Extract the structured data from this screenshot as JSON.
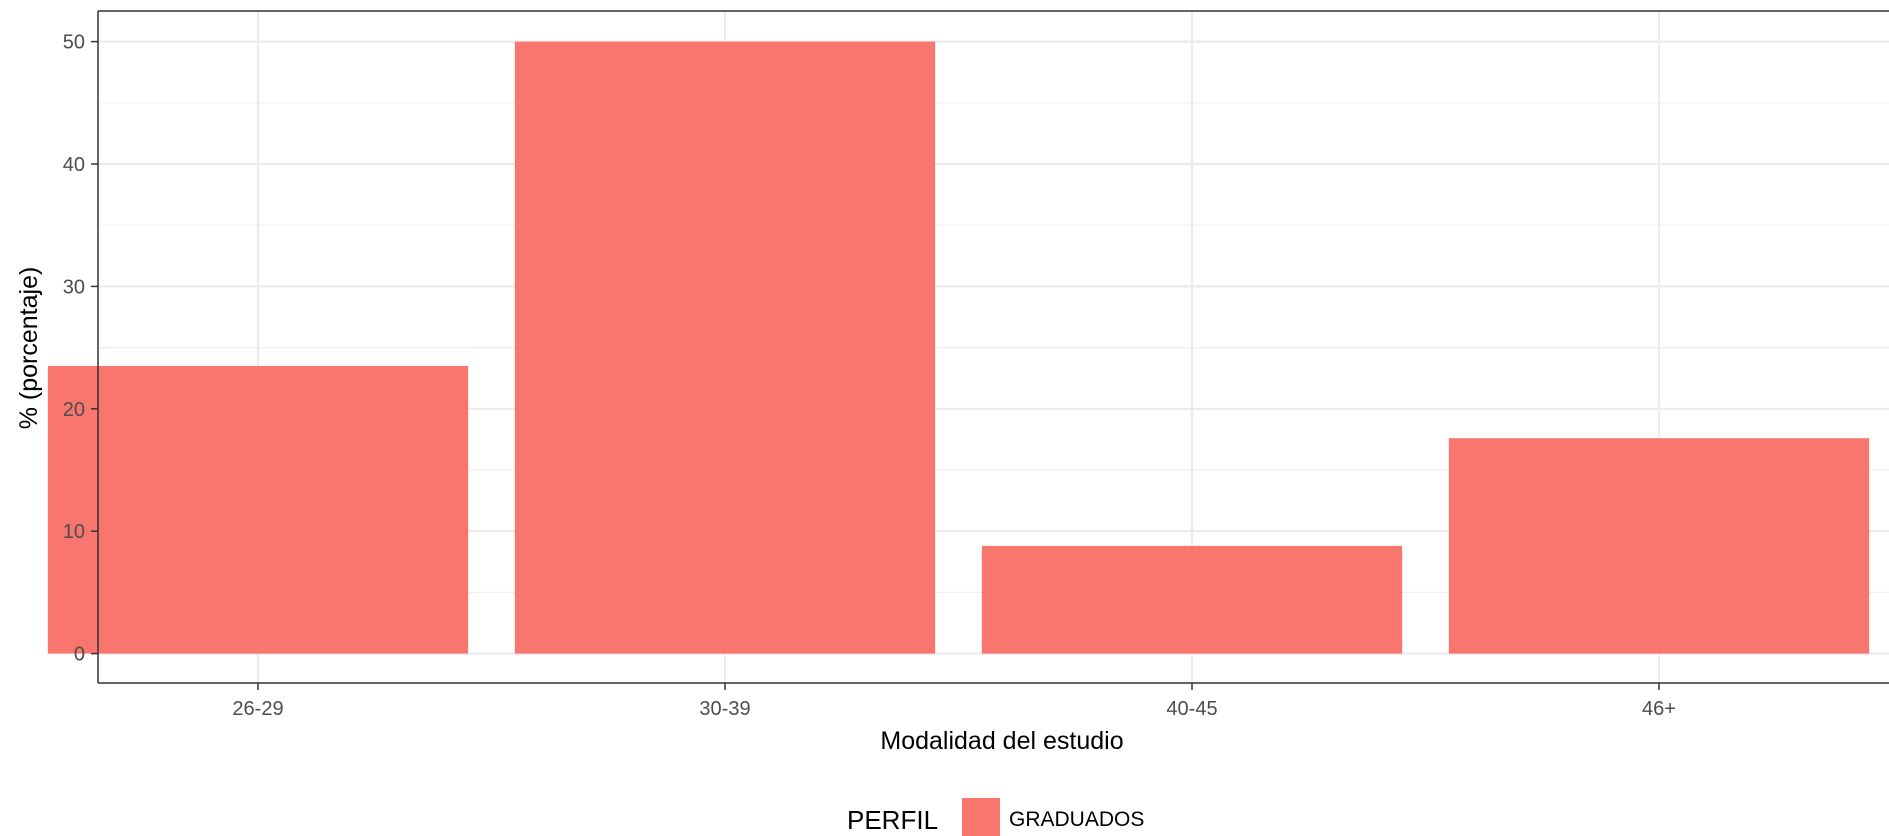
{
  "chart_data": {
    "type": "bar",
    "categories": [
      "26-29",
      "30-39",
      "40-45",
      "46+"
    ],
    "series": [
      {
        "name": "GRADUADOS",
        "values": [
          23.5,
          50.0,
          8.8,
          17.6
        ],
        "color": "#F8766D"
      }
    ],
    "xlabel": "Modalidad del estudio",
    "ylabel": "% (porcentaje)",
    "ylim": [
      -2.4,
      52.5
    ],
    "yticks": [
      0,
      10,
      20,
      30,
      40,
      50
    ],
    "grid": true,
    "legend": {
      "title": "PERFIL",
      "position": "bottom"
    }
  }
}
